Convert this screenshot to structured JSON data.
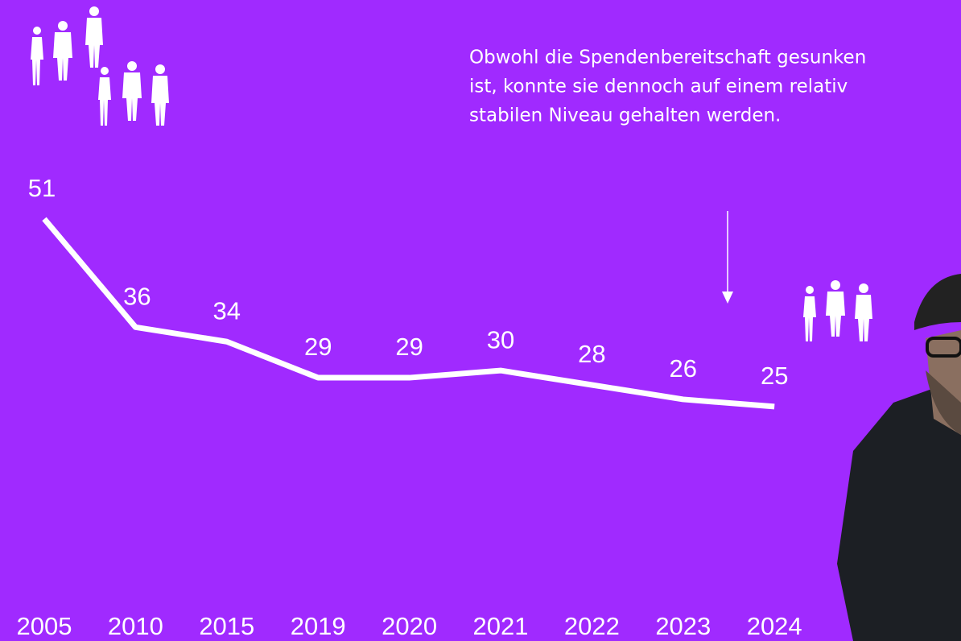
{
  "chart_data": {
    "type": "line",
    "annotation": [
      "Obwohl die Spendenbereitschaft gesunken",
      "ist, konnte sie dennoch auf einem relativ",
      "stabilen Niveau gehalten werden."
    ],
    "categories": [
      "2005",
      "2010",
      "2015",
      "2019",
      "2020",
      "2021",
      "2022",
      "2023",
      "2024"
    ],
    "values": [
      51,
      36,
      34,
      29,
      29,
      30,
      28,
      26,
      25
    ],
    "color": "#ffffff",
    "ylim": [
      0,
      55
    ]
  }
}
